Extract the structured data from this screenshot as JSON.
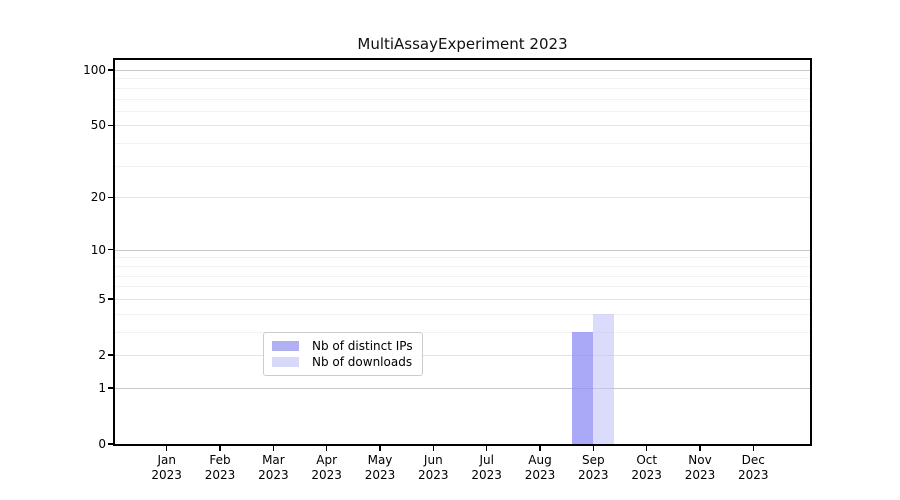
{
  "chart_data": {
    "type": "bar",
    "title": "MultiAssayExperiment 2023",
    "year_label": "2023",
    "categories": [
      "Jan",
      "Feb",
      "Mar",
      "Apr",
      "May",
      "Jun",
      "Jul",
      "Aug",
      "Sep",
      "Oct",
      "Nov",
      "Dec"
    ],
    "series": [
      {
        "name": "Nb of distinct IPs",
        "color": "rgba(140,140,244,0.75)",
        "legend_color": "#b0b0f2",
        "values": [
          0,
          0,
          0,
          0,
          0,
          0,
          0,
          0,
          3,
          0,
          0,
          0
        ]
      },
      {
        "name": "Nb of downloads",
        "color": "rgba(190,190,247,0.55)",
        "legend_color": "#d8d8f9",
        "values": [
          0,
          0,
          0,
          0,
          0,
          0,
          0,
          0,
          4,
          0,
          0,
          0
        ]
      }
    ],
    "y_scale": "log10(value+1)",
    "ylim": [
      0,
      110
    ],
    "y_ticks": [
      0,
      1,
      2,
      5,
      10,
      20,
      50,
      100
    ],
    "y_gridlines": {
      "dark": [
        1,
        10,
        100
      ],
      "medium": [
        2,
        5,
        20,
        50
      ],
      "light": [
        3,
        4,
        6,
        7,
        8,
        9,
        30,
        40,
        60,
        70,
        80,
        90
      ]
    },
    "grid_colors": {
      "dark": "#c9c9c9",
      "medium": "#e4e4e4",
      "light": "#f2f2f2"
    },
    "axis_color": "#000000",
    "legend_position": "bottom-center",
    "grid": true
  }
}
